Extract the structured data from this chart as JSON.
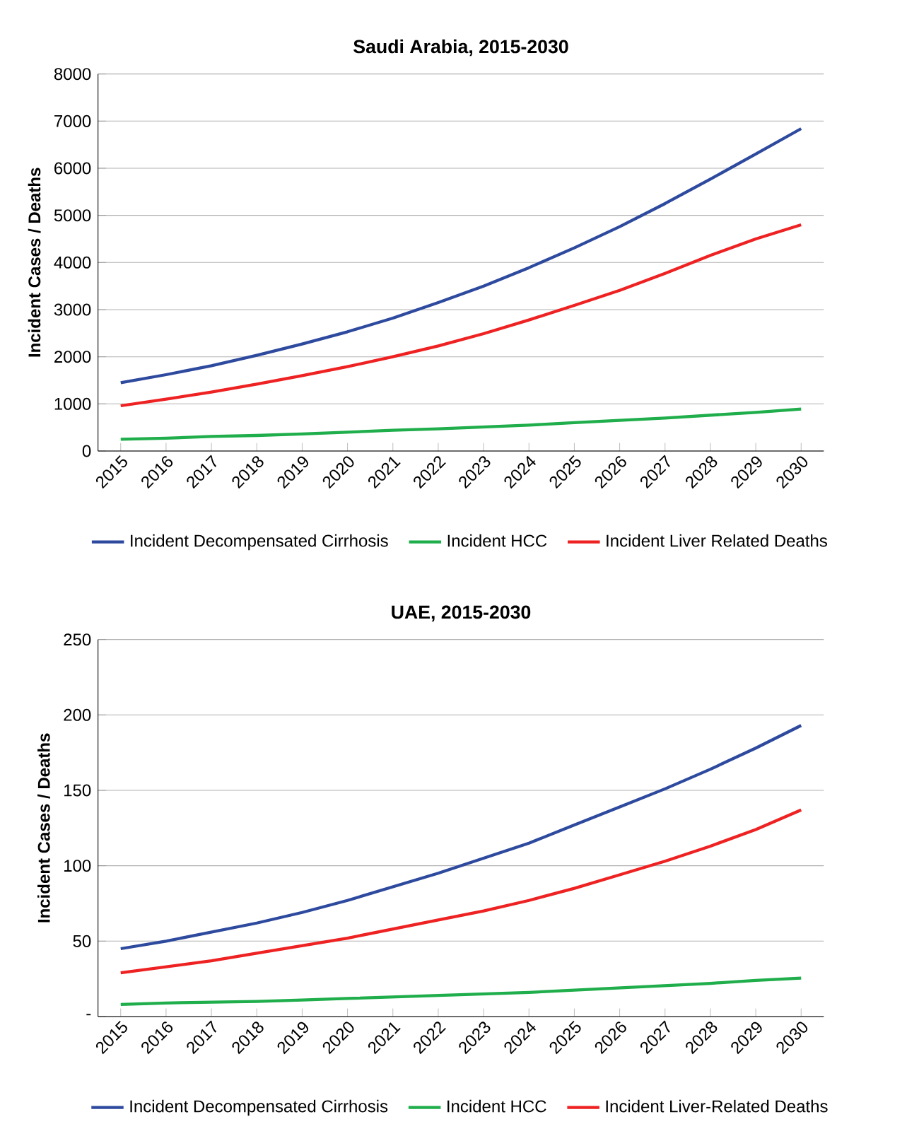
{
  "chart_data": [
    {
      "type": "line",
      "title": "Saudi Arabia, 2015-2030",
      "ylabel": "Incident Cases / Deaths",
      "categories": [
        "2015",
        "2016",
        "2017",
        "2018",
        "2019",
        "2020",
        "2021",
        "2022",
        "2023",
        "2024",
        "2025",
        "2026",
        "2027",
        "2028",
        "2029",
        "2030"
      ],
      "ylim": [
        0,
        8000
      ],
      "yticks": [
        0,
        1000,
        2000,
        3000,
        4000,
        5000,
        6000,
        7000,
        8000
      ],
      "grid": "y",
      "legend": "bottom",
      "series": [
        {
          "name": "Incident Decompensated Cirrhosis",
          "color": "#2e4a9e",
          "values": [
            1450,
            1620,
            1810,
            2030,
            2270,
            2530,
            2820,
            3150,
            3500,
            3890,
            4310,
            4760,
            5250,
            5770,
            6300,
            6840
          ]
        },
        {
          "name": "Incident HCC",
          "color": "#1fae4b",
          "values": [
            250,
            270,
            310,
            330,
            360,
            400,
            440,
            470,
            510,
            550,
            600,
            650,
            700,
            760,
            820,
            890
          ]
        },
        {
          "name": "Incident Liver Related Deaths",
          "color": "#ee2222",
          "values": [
            960,
            1100,
            1250,
            1420,
            1600,
            1790,
            2000,
            2230,
            2490,
            2780,
            3090,
            3410,
            3770,
            4150,
            4500,
            4800
          ]
        }
      ]
    },
    {
      "type": "line",
      "title": "UAE, 2015-2030",
      "ylabel": "Incident Cases / Deaths",
      "categories": [
        "2015",
        "2016",
        "2017",
        "2018",
        "2019",
        "2020",
        "2021",
        "2022",
        "2023",
        "2024",
        "2025",
        "2026",
        "2027",
        "2028",
        "2029",
        "2030"
      ],
      "ylim": [
        0,
        250
      ],
      "yticks": [
        {
          "value": 0,
          "label": "-"
        },
        50,
        100,
        150,
        200,
        250
      ],
      "grid": "y",
      "legend": "bottom",
      "series": [
        {
          "name": "Incident Decompensated Cirrhosis",
          "color": "#2e4a9e",
          "values": [
            45,
            50,
            56,
            62,
            69,
            77,
            86,
            95,
            105,
            115,
            127,
            139,
            151,
            164,
            178,
            193
          ]
        },
        {
          "name": "Incident HCC",
          "color": "#1fae4b",
          "values": [
            8,
            9,
            9.5,
            10,
            11,
            12,
            13,
            14,
            15,
            16,
            17.5,
            19,
            20.5,
            22,
            24,
            25.5
          ]
        },
        {
          "name": "Incident Liver-Related Deaths",
          "color": "#ee2222",
          "values": [
            29,
            33,
            37,
            42,
            47,
            52,
            58,
            64,
            70,
            77,
            85,
            94,
            103,
            113,
            124,
            137
          ]
        }
      ]
    }
  ]
}
